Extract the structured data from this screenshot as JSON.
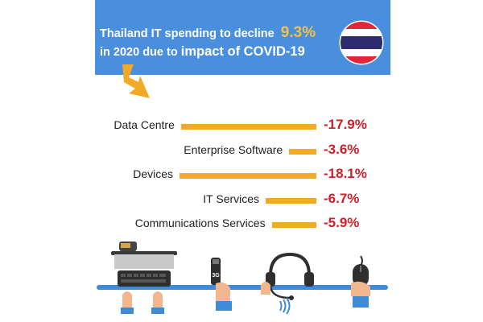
{
  "header": {
    "line1_text": "Thailand IT spending to decline",
    "line1_highlight": "9.3%",
    "line2_text": "in 2020 due to",
    "line2_big": "impact of COVID-19"
  },
  "colors": {
    "banner": "#4a8fde",
    "bar": "#f2a926",
    "value": "#d11e2a",
    "highlight": "#f5c04a"
  },
  "chart_data": {
    "type": "bar",
    "categories": [
      "Data Centre",
      "Enterprise Software",
      "Devices",
      "IT Services",
      "Communications Services"
    ],
    "values": [
      -17.9,
      -3.6,
      -18.1,
      -6.7,
      -5.9
    ],
    "value_labels": [
      "-17.9%",
      "-3.6%",
      "-18.1%",
      "-6.7%",
      "-5.9%"
    ],
    "legend": "none",
    "grid": false
  },
  "icons": [
    "arrow-icon",
    "thailand-flag-icon",
    "computer-icon",
    "usb-3g-modem-icon",
    "headset-icon",
    "mouse-icon"
  ]
}
